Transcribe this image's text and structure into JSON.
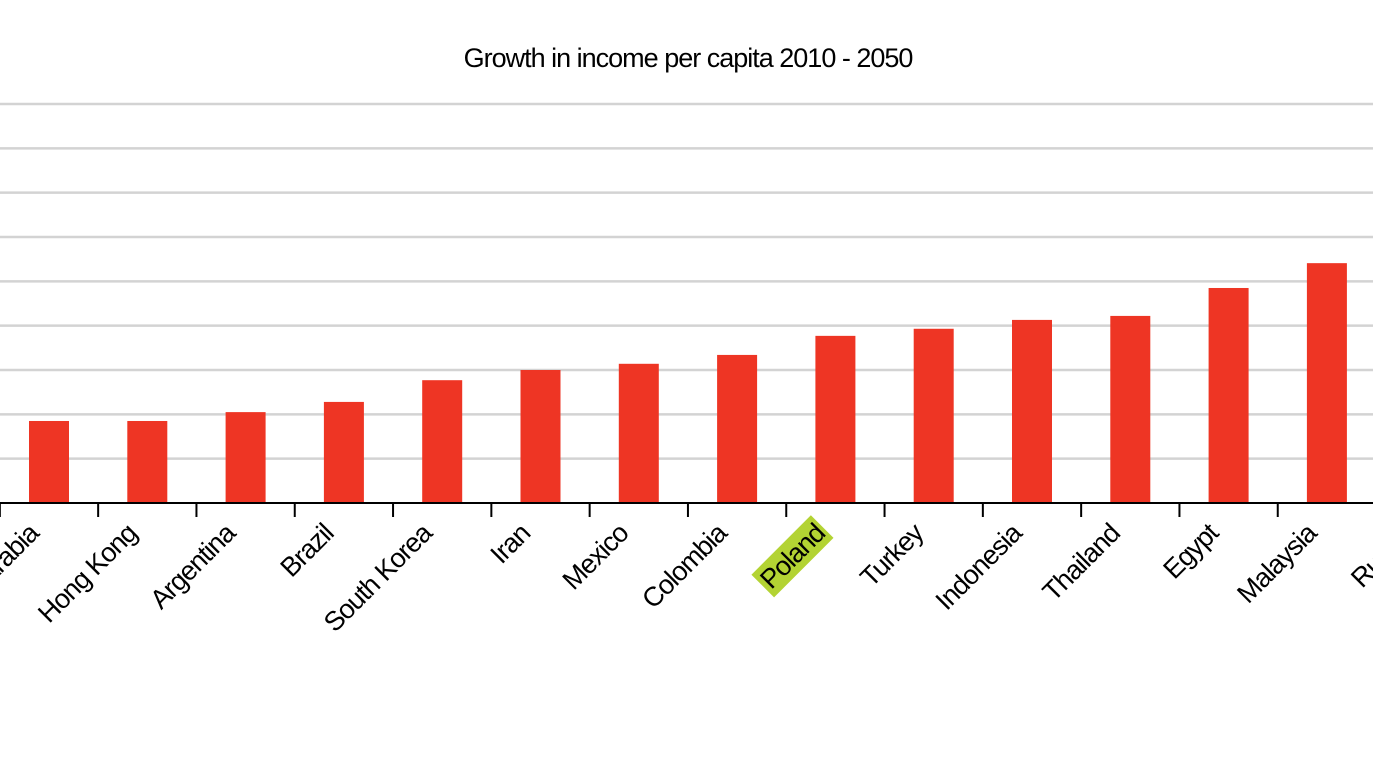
{
  "chart_data": {
    "type": "bar",
    "title": "Growth in income per capita 2010 - 2050",
    "categories": [
      "Saudi Arabia",
      "Hong Kong",
      "Argentina",
      "Brazil",
      "South Korea",
      "Iran",
      "Mexico",
      "Colombia",
      "Poland",
      "Turkey",
      "Indonesia",
      "Thailand",
      "Egypt",
      "Malaysia",
      "Russia"
    ],
    "values": [
      1.85,
      1.85,
      2.05,
      2.28,
      2.77,
      3.0,
      3.14,
      3.34,
      3.77,
      3.93,
      4.13,
      4.22,
      4.85,
      5.41,
      null
    ],
    "color": "#ee3524",
    "ylim": [
      0,
      9
    ],
    "yticks": [
      0,
      1,
      2,
      3,
      4,
      5,
      6,
      7,
      8,
      9
    ],
    "grid": true,
    "highlight_index": 8,
    "highlight_color": "#b3d333"
  }
}
